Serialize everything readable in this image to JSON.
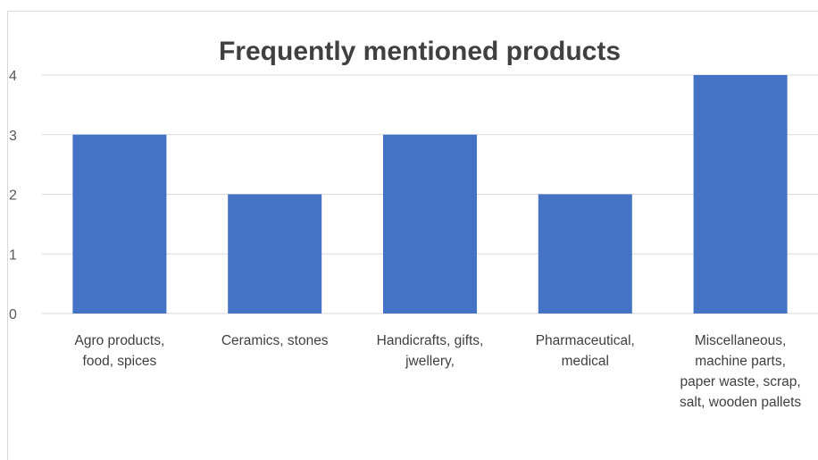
{
  "chart_data": {
    "type": "bar",
    "title": "Frequently mentioned products",
    "categories": [
      [
        "Agro products,",
        "food, spices"
      ],
      [
        "Ceramics, stones"
      ],
      [
        "Handicrafts, gifts,",
        "jwellery,"
      ],
      [
        "Pharmaceutical,",
        "medical"
      ],
      [
        "Miscellaneous,",
        "machine parts,",
        "paper waste, scrap,",
        "salt, wooden pallets"
      ]
    ],
    "values": [
      3,
      2,
      3,
      2,
      4
    ],
    "ylim": [
      0,
      4
    ],
    "yticks": [
      "0",
      "1",
      "2",
      "3",
      "4"
    ],
    "grid": true,
    "legend": "none",
    "bar_color": "#4472C4",
    "grid_color": "#d9d9d9"
  }
}
